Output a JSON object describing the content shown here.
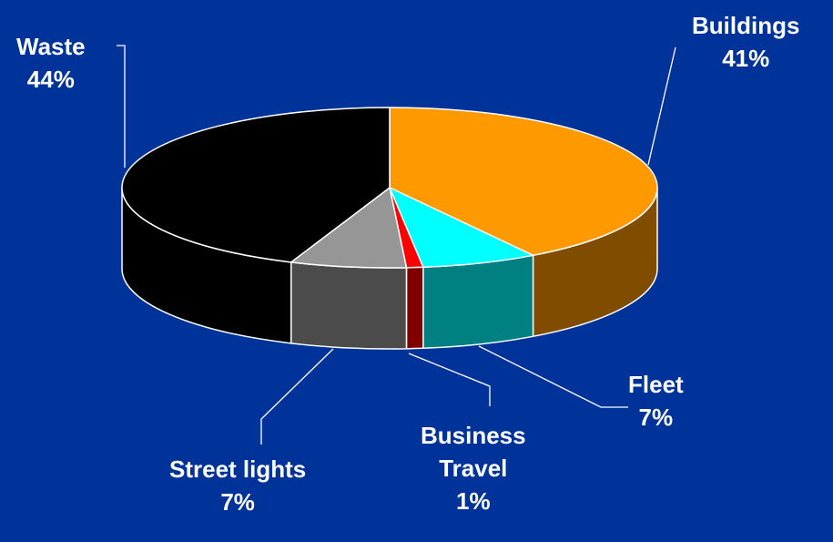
{
  "chart_data": {
    "type": "pie",
    "style": "3d",
    "background": "#003399",
    "slices": [
      {
        "label": "Buildings",
        "value": 41,
        "value_label": "41%",
        "color": "#FF9900",
        "side_color": "#804C00"
      },
      {
        "label": "Fleet",
        "value": 7,
        "value_label": "7%",
        "color": "#00FFFF",
        "side_color": "#008080"
      },
      {
        "label": "Business Travel",
        "label_lines": [
          "Business",
          "Travel"
        ],
        "value": 1,
        "value_label": "1%",
        "color": "#FF0000",
        "side_color": "#800000"
      },
      {
        "label": "Street lights",
        "value": 7,
        "value_label": "7%",
        "color": "#969696",
        "side_color": "#4B4B4B"
      },
      {
        "label": "Waste",
        "value": 44,
        "value_label": "44%",
        "color": "#000000",
        "side_color": "#000000"
      }
    ]
  }
}
